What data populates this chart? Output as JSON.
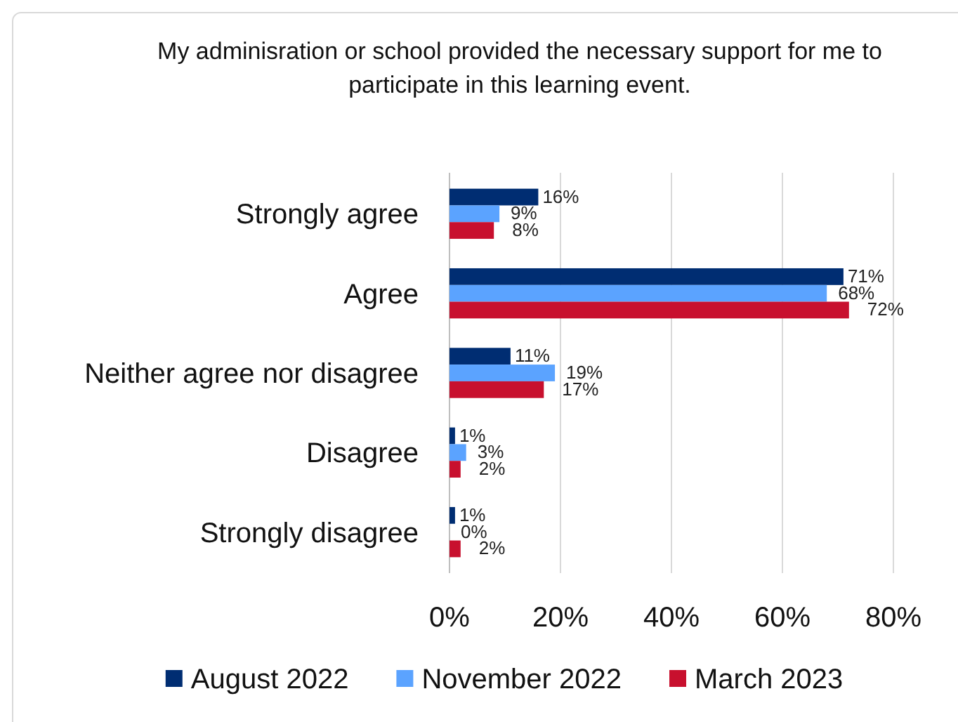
{
  "chart_data": {
    "type": "bar",
    "orientation": "horizontal",
    "title": "My adminisration or school provided the necessary support for me to participate in this learning event.",
    "categories": [
      "Strongly agree",
      "Agree",
      "Neither agree nor disagree",
      "Disagree",
      "Strongly disagree"
    ],
    "series": [
      {
        "name": "August 2022",
        "color": "#002d72",
        "values": [
          16,
          71,
          11,
          1,
          1
        ],
        "value_labels": [
          "16%",
          "71%",
          "11%",
          "1%",
          "1%"
        ]
      },
      {
        "name": "November 2022",
        "color": "#5ba3ff",
        "values": [
          9,
          68,
          19,
          3,
          0
        ],
        "value_labels": [
          "9%",
          "68%",
          "19%",
          "3%",
          "0%"
        ]
      },
      {
        "name": "March 2023",
        "color": "#c8102e",
        "values": [
          8,
          72,
          17,
          2,
          2
        ],
        "value_labels": [
          "8%",
          "72%",
          "17%",
          "2%",
          "2%"
        ]
      }
    ],
    "xlim": [
      0,
      80
    ],
    "xticks": [
      {
        "value": 0,
        "label": "0%"
      },
      {
        "value": 20,
        "label": "20%"
      },
      {
        "value": 40,
        "label": "40%"
      },
      {
        "value": 60,
        "label": "60%"
      },
      {
        "value": 80,
        "label": "80%"
      }
    ],
    "grid": "x",
    "legend": "bottom"
  }
}
